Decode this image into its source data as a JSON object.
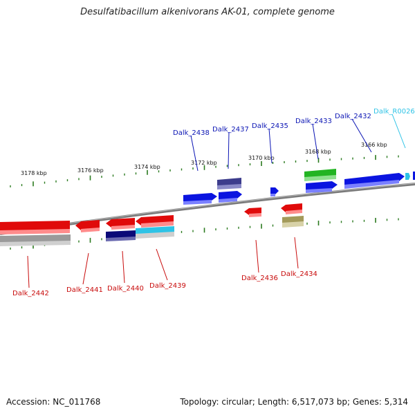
{
  "title": "Desulfatibacillum alkenivorans AK-01, complete genome",
  "footer": {
    "accession": "Accession: NC_011768",
    "summary": "Topology: circular; Length: 6,517,073 bp; Genes: 5,314"
  },
  "colors": {
    "forward_gene": "#0a14e0",
    "reverse_gene": "#e00a0a",
    "label_forward": "#0a14b4",
    "label_reverse": "#c80a0a",
    "rna": "#2ec3e6",
    "backbone": "#7a7a7a",
    "tick": "#2a7a1e"
  },
  "scale_labels": [
    "3178 kbp",
    "3176 kbp",
    "3174 kbp",
    "3172 kbp",
    "3170 kbp",
    "3168 kbp",
    "3166 kbp"
  ],
  "forward_labels": [
    "Dalk_2438",
    "Dalk_2437",
    "Dalk_2435",
    "Dalk_2433",
    "Dalk_2432",
    "Dalk_R0026"
  ],
  "reverse_labels": [
    "Dalk_2442",
    "Dalk_2441",
    "Dalk_2440",
    "Dalk_2439",
    "Dalk_2436",
    "Dalk_2434"
  ]
}
